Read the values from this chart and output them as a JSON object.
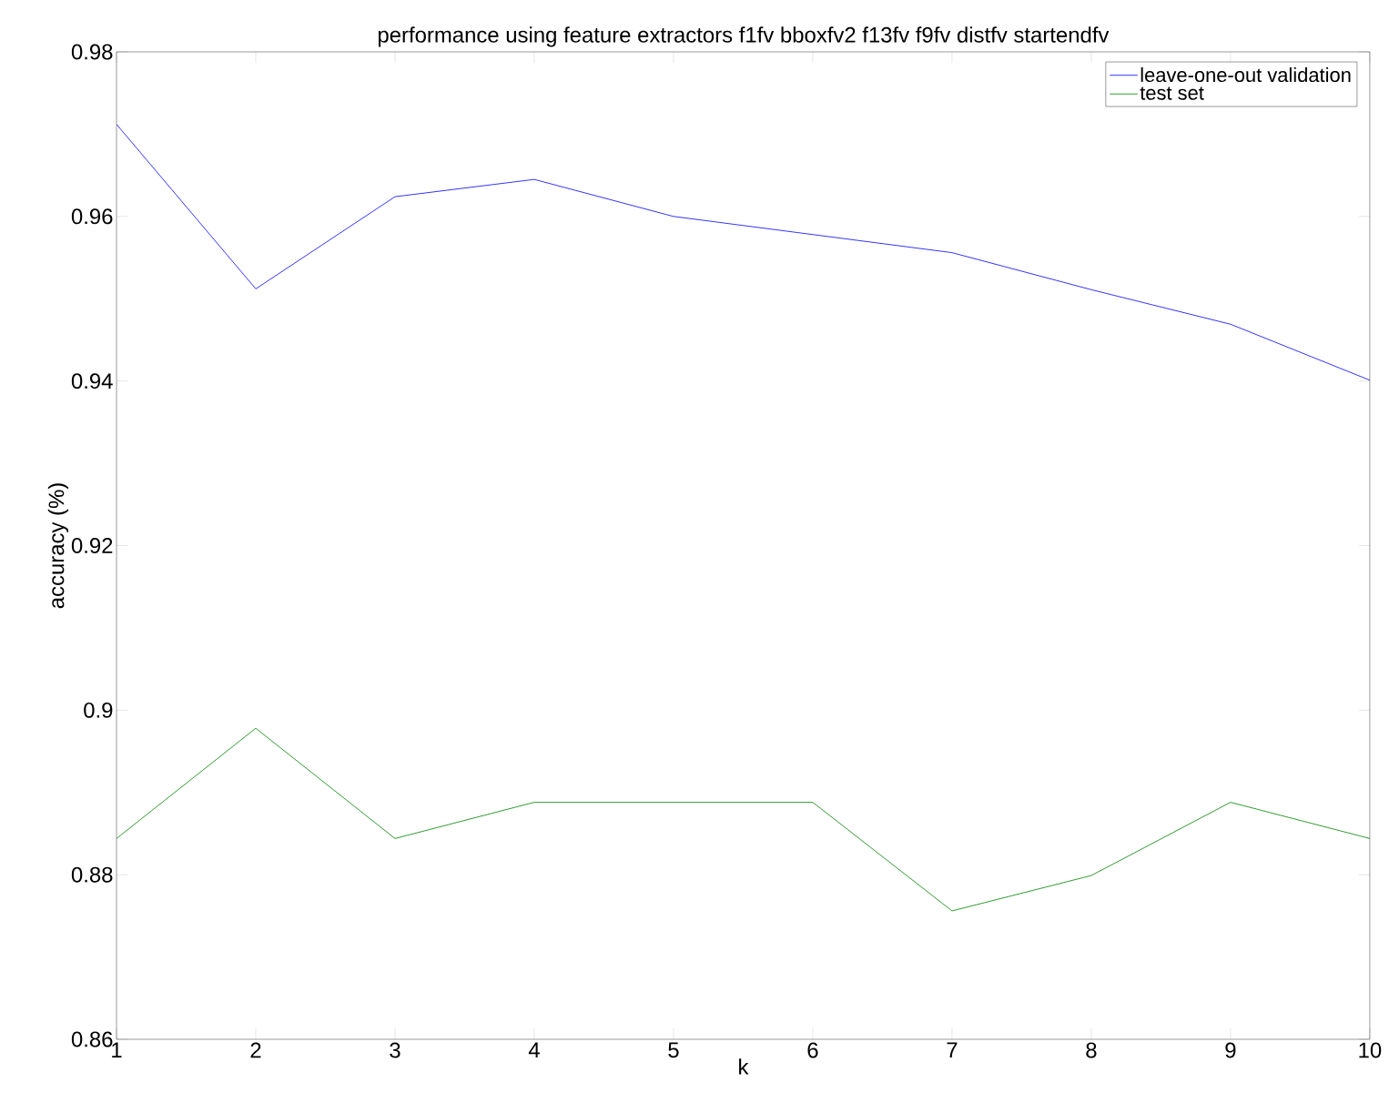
{
  "chart_data": {
    "type": "line",
    "title": "performance using feature extractors f1fv bboxfv2 f13fv f9fv distfv startendfv",
    "xlabel": "k",
    "ylabel": "accuracy (%)",
    "x": [
      1,
      2,
      3,
      4,
      5,
      6,
      7,
      8,
      9,
      10
    ],
    "series": [
      {
        "name": "leave-one-out validation",
        "color": "#0000ff",
        "values": [
          0.9712,
          0.9512,
          0.9624,
          0.9645,
          0.96,
          0.9578,
          0.9556,
          0.9511,
          0.9469,
          0.9401
        ]
      },
      {
        "name": "test set",
        "color": "#008000",
        "values": [
          0.8844,
          0.8978,
          0.8844,
          0.8888,
          0.8888,
          0.8888,
          0.8756,
          0.8799,
          0.8888,
          0.8844
        ]
      }
    ],
    "xlim": [
      1,
      10
    ],
    "ylim": [
      0.86,
      0.98
    ],
    "xticks": [
      1,
      2,
      3,
      4,
      5,
      6,
      7,
      8,
      9,
      10
    ],
    "yticks": [
      0.86,
      0.88,
      {
        "value": 0.9,
        "label": "0.9"
      },
      0.92,
      0.94,
      0.96,
      0.98
    ],
    "grid": false,
    "legend": "top right",
    "marker": "none",
    "line_style": "solid"
  }
}
